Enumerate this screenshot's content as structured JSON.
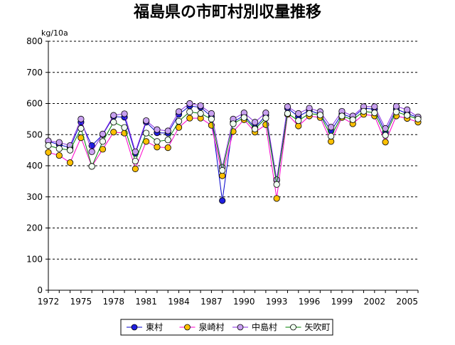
{
  "chart_data": {
    "type": "line",
    "title": "福島県の市町村別収量推移",
    "ylabel": "kg/10a",
    "xlabel": "",
    "ylim": [
      0,
      800
    ],
    "xlim": [
      1972,
      2006
    ],
    "y_ticks": [
      0,
      100,
      200,
      300,
      400,
      500,
      600,
      700,
      800
    ],
    "x_tick_labels": [
      "1972",
      "1975",
      "1978",
      "1981",
      "1984",
      "1987",
      "1990",
      "1993",
      "1996",
      "1999",
      "2002",
      "2005"
    ],
    "grid": "horizontal-dashed",
    "legend_position": "bottom",
    "x": [
      1972,
      1973,
      1974,
      1975,
      1976,
      1977,
      1978,
      1979,
      1980,
      1981,
      1982,
      1983,
      1984,
      1985,
      1986,
      1987,
      1988,
      1989,
      1990,
      1991,
      1992,
      1993,
      1994,
      1995,
      1996,
      1997,
      1998,
      1999,
      2000,
      2001,
      2002,
      2003,
      2004,
      2005,
      2006
    ],
    "series": [
      {
        "name": "東村",
        "color": "#0000cc",
        "marker_fill": "#1f1fe0",
        "values": [
          478,
          468,
          458,
          540,
          465,
          500,
          558,
          556,
          440,
          540,
          506,
          505,
          565,
          592,
          588,
          558,
          288,
          540,
          562,
          522,
          562,
          353,
          585,
          558,
          578,
          565,
          512,
          566,
          555,
          585,
          582,
          508,
          582,
          568,
          555
        ]
      },
      {
        "name": "泉崎村",
        "color": "#ff00cc",
        "marker_fill": "#ffc000",
        "values": [
          443,
          433,
          410,
          490,
          398,
          453,
          508,
          505,
          390,
          478,
          460,
          458,
          523,
          553,
          553,
          530,
          368,
          510,
          548,
          508,
          532,
          295,
          565,
          528,
          560,
          555,
          478,
          555,
          535,
          565,
          560,
          476,
          560,
          552,
          540
        ]
      },
      {
        "name": "中島村",
        "color": "#8a2be2",
        "marker_fill": "#c8a0f0",
        "values": [
          480,
          475,
          465,
          550,
          445,
          502,
          562,
          567,
          445,
          545,
          516,
          512,
          574,
          600,
          593,
          568,
          395,
          550,
          570,
          540,
          570,
          355,
          590,
          568,
          585,
          574,
          524,
          575,
          560,
          590,
          590,
          520,
          591,
          580,
          557
        ]
      },
      {
        "name": "矢吹町",
        "color": "#008000",
        "marker_fill": "#f0fff0",
        "values": [
          465,
          455,
          450,
          520,
          398,
          478,
          540,
          523,
          415,
          505,
          478,
          483,
          543,
          573,
          568,
          550,
          385,
          535,
          555,
          518,
          553,
          340,
          568,
          545,
          568,
          563,
          495,
          560,
          548,
          575,
          570,
          498,
          573,
          562,
          550
        ]
      }
    ]
  }
}
